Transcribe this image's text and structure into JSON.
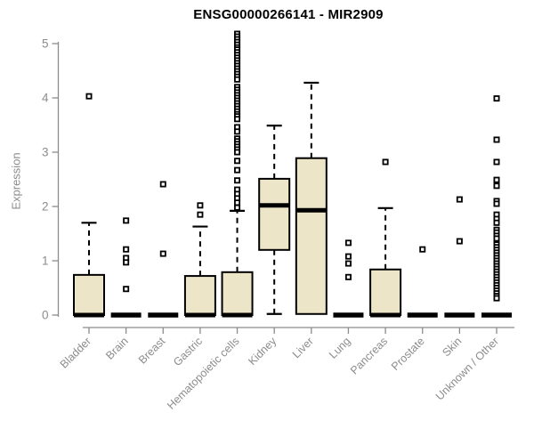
{
  "chart_data": {
    "type": "boxplot",
    "title": "ENSG00000266141 - MIR2909",
    "ylabel": "Expression",
    "xlabel": "",
    "ylim": [
      0,
      5.2
    ],
    "yticks": [
      0,
      1,
      2,
      3,
      4,
      5
    ],
    "grid": false,
    "legend": "none",
    "colors": {
      "box_fill": "#ece5c8",
      "box_border": "#000000",
      "median": "#000000",
      "whisker": "#000000",
      "outlier": "#000000",
      "axis": "#8c8c8c",
      "tick_label": "#8c8c8c",
      "title": "#000000"
    },
    "categories": [
      "Bladder",
      "Brain",
      "Breast",
      "Gastric",
      "Hematopoietic cells",
      "Kidney",
      "Liver",
      "Lung",
      "Pancreas",
      "Prostate",
      "Skin",
      "Unknown / Other"
    ],
    "series": [
      {
        "category": "Bladder",
        "min": 0,
        "q1": 0,
        "median": 0,
        "q3": 0.74,
        "max": 1.7,
        "outliers": [
          4.03
        ]
      },
      {
        "category": "Brain",
        "min": 0,
        "q1": 0,
        "median": 0,
        "q3": 0,
        "max": 0,
        "outliers": [
          1.74,
          1.21,
          1.05,
          0.97,
          0.48
        ]
      },
      {
        "category": "Breast",
        "min": 0,
        "q1": 0,
        "median": 0,
        "q3": 0,
        "max": 0,
        "outliers": [
          2.41,
          1.13
        ]
      },
      {
        "category": "Gastric",
        "min": 0,
        "q1": 0,
        "median": 0,
        "q3": 0.72,
        "max": 1.63,
        "outliers": [
          2.02,
          1.85
        ]
      },
      {
        "category": "Hematopoietic cells",
        "min": 0,
        "q1": 0,
        "median": 0,
        "q3": 0.79,
        "max": 1.92,
        "outliers": [
          5.18,
          5.13,
          5.08,
          5.03,
          4.98,
          4.93,
          4.89,
          4.84,
          4.79,
          4.74,
          4.69,
          4.64,
          4.59,
          4.54,
          4.49,
          4.44,
          4.39,
          4.34,
          4.2,
          4.15,
          4.1,
          4.05,
          4.0,
          3.95,
          3.9,
          3.85,
          3.8,
          3.75,
          3.7,
          3.66,
          3.61,
          3.46,
          3.38,
          3.25,
          3.2,
          3.15,
          3.1,
          3.05,
          3.0,
          2.84,
          2.67,
          2.48,
          2.31,
          2.23,
          2.15,
          2.07,
          1.98
        ]
      },
      {
        "category": "Kidney",
        "min": 0.02,
        "q1": 1.2,
        "median": 2.02,
        "q3": 2.51,
        "max": 3.49,
        "outliers": []
      },
      {
        "category": "Liver",
        "min": 0.02,
        "q1": 0.02,
        "median": 1.93,
        "q3": 2.89,
        "max": 4.28,
        "outliers": []
      },
      {
        "category": "Lung",
        "min": 0,
        "q1": 0,
        "median": 0,
        "q3": 0,
        "max": 0,
        "outliers": [
          1.33,
          1.08,
          0.95,
          0.7
        ]
      },
      {
        "category": "Pancreas",
        "min": 0,
        "q1": 0,
        "median": 0,
        "q3": 0.84,
        "max": 1.97,
        "outliers": [
          2.82
        ]
      },
      {
        "category": "Prostate",
        "min": 0,
        "q1": 0,
        "median": 0,
        "q3": 0,
        "max": 0,
        "outliers": [
          1.21
        ]
      },
      {
        "category": "Skin",
        "min": 0,
        "q1": 0,
        "median": 0,
        "q3": 0,
        "max": 0,
        "outliers": [
          2.13,
          1.36
        ]
      },
      {
        "category": "Unknown / Other",
        "min": 0,
        "q1": 0,
        "median": 0,
        "q3": 0,
        "max": 0,
        "outliers": [
          3.99,
          3.23,
          2.82,
          2.49,
          2.38,
          2.1,
          2.05,
          1.85,
          1.77,
          1.7,
          1.57,
          1.52,
          1.46,
          1.41,
          1.3,
          1.25,
          1.2,
          1.15,
          1.1,
          1.05,
          1.0,
          0.95,
          0.9,
          0.85,
          0.8,
          0.75,
          0.7,
          0.65,
          0.6,
          0.55,
          0.5,
          0.45,
          0.4,
          0.35,
          0.31
        ]
      }
    ]
  }
}
